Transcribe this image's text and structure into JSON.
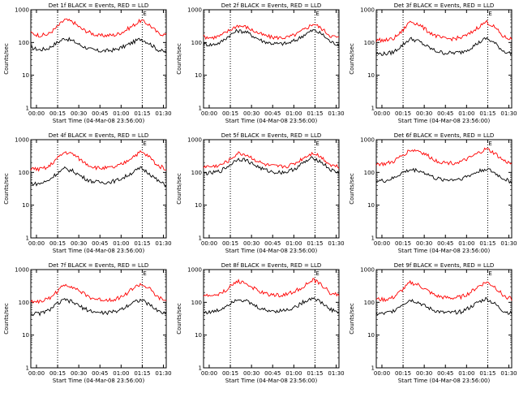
{
  "page": {
    "panel_titles": [
      "Det 1f BLACK = Events, RED = LLD",
      "Det 2f BLACK = Events, RED = LLD",
      "Det 3f BLACK = Events, RED = LLD",
      "Det 4f BLACK = Events, RED = LLD",
      "Det 5f BLACK = Events, RED = LLD",
      "Det 6f BLACK = Events, RED = LLD",
      "Det 7f BLACK = Events, RED = LLD",
      "Det 8f BLACK = Events, RED = LLD",
      "Det 9f BLACK = Events, RED = LLD"
    ],
    "xlabel": "Start Time (04-Mar-08 23:56:00)",
    "ylabel": "Counts/sec",
    "marker_label": "E",
    "colors": {
      "events": "#000000",
      "lld": "#ff0000",
      "marker": "#000000"
    }
  },
  "chart_data": {
    "type": "line",
    "layout": "3x3 grid of identical panels",
    "x_unit": "minutes after 23:56:00",
    "xlim": [
      0,
      96
    ],
    "x_ticks": [
      4,
      19,
      34,
      49,
      64,
      79,
      94
    ],
    "x_tick_labels": [
      "00:00",
      "00:15",
      "00:30",
      "00:45",
      "01:00",
      "01:15",
      "01:30"
    ],
    "y_scale": "log",
    "ylim": [
      1,
      1000
    ],
    "y_ticks": [
      1,
      10,
      100,
      1000
    ],
    "y_tick_labels": [
      "1",
      "10",
      "100",
      "1000"
    ],
    "markers": [
      {
        "x": 19,
        "style": "dotted"
      },
      {
        "x": 79,
        "style": "dotted",
        "label": "E"
      }
    ],
    "x": [
      0,
      6,
      12,
      18,
      24,
      30,
      36,
      42,
      48,
      54,
      60,
      66,
      72,
      78,
      84,
      90,
      96
    ],
    "panels": [
      {
        "title": "Det 1f BLACK = Events, RED = LLD",
        "series": [
          {
            "name": "BLACK = Events",
            "color": "#000000",
            "values": [
              70,
              60,
              65,
              95,
              135,
              110,
              80,
              62,
              55,
              56,
              60,
              75,
              100,
              130,
              95,
              60,
              50
            ]
          },
          {
            "name": "RED = LLD",
            "color": "#ff0000",
            "values": [
              195,
              165,
              175,
              280,
              500,
              420,
              260,
              200,
              160,
              165,
              170,
              220,
              320,
              470,
              350,
              195,
              170
            ]
          }
        ]
      },
      {
        "title": "Det 2f BLACK = Events, RED = LLD",
        "series": [
          {
            "name": "BLACK = Events",
            "color": "#000000",
            "values": [
              90,
              85,
              100,
              160,
              230,
              210,
              150,
              110,
              95,
              90,
              95,
              120,
              180,
              240,
              180,
              105,
              85
            ]
          },
          {
            "name": "RED = LLD",
            "color": "#ff0000",
            "values": [
              150,
              140,
              160,
              230,
              330,
              300,
              220,
              170,
              145,
              140,
              145,
              180,
              260,
              380,
              260,
              160,
              140
            ]
          }
        ]
      },
      {
        "title": "Det 3f BLACK = Events, RED = LLD",
        "series": [
          {
            "name": "BLACK = Events",
            "color": "#000000",
            "values": [
              45,
              45,
              50,
              80,
              130,
              110,
              75,
              55,
              48,
              48,
              50,
              65,
              95,
              135,
              95,
              55,
              45
            ]
          },
          {
            "name": "RED = LLD",
            "color": "#ff0000",
            "values": [
              120,
              115,
              130,
              210,
              450,
              360,
              230,
              160,
              130,
              130,
              140,
              180,
              290,
              430,
              290,
              150,
              125
            ]
          }
        ]
      },
      {
        "title": "Det 4f BLACK = Events, RED = LLD",
        "series": [
          {
            "name": "BLACK = Events",
            "color": "#000000",
            "values": [
              45,
              45,
              55,
              90,
              130,
              110,
              75,
              55,
              50,
              50,
              55,
              70,
              100,
              135,
              95,
              55,
              40
            ]
          },
          {
            "name": "RED = LLD",
            "color": "#ff0000",
            "values": [
              130,
              125,
              140,
              250,
              420,
              360,
              230,
              160,
              135,
              135,
              145,
              190,
              300,
              420,
              300,
              160,
              130
            ]
          }
        ]
      },
      {
        "title": "Det 5f BLACK = Events, RED = LLD",
        "series": [
          {
            "name": "BLACK = Events",
            "color": "#000000",
            "values": [
              95,
              95,
              110,
              160,
              260,
              240,
              170,
              125,
              105,
              100,
              105,
              140,
              210,
              280,
              200,
              120,
              95
            ]
          },
          {
            "name": "RED = LLD",
            "color": "#ff0000",
            "values": [
              150,
              150,
              165,
              230,
              380,
              350,
              250,
              180,
              155,
              150,
              155,
              200,
              300,
              400,
              280,
              170,
              150
            ]
          }
        ]
      },
      {
        "title": "Det 6f BLACK = Events, RED = LLD",
        "series": [
          {
            "name": "BLACK = Events",
            "color": "#000000",
            "values": [
              55,
              55,
              65,
              95,
              120,
              115,
              90,
              65,
              60,
              60,
              65,
              80,
              105,
              130,
              95,
              65,
              50
            ]
          },
          {
            "name": "RED = LLD",
            "color": "#ff0000",
            "values": [
              180,
              180,
              210,
              320,
              480,
              460,
              330,
              230,
              200,
              195,
              210,
              270,
              380,
              520,
              380,
              230,
              180
            ]
          }
        ]
      },
      {
        "title": "Det 7f BLACK = Events, RED = LLD",
        "series": [
          {
            "name": "BLACK = Events",
            "color": "#000000",
            "values": [
              45,
              45,
              55,
              85,
              120,
              100,
              70,
              55,
              48,
              48,
              52,
              68,
              100,
              120,
              85,
              55,
              45
            ]
          },
          {
            "name": "RED = LLD",
            "color": "#ff0000",
            "values": [
              110,
              105,
              125,
              200,
              350,
              300,
              200,
              140,
              120,
              120,
              125,
              160,
              260,
              360,
              260,
              140,
              110
            ]
          }
        ]
      },
      {
        "title": "Det 8f BLACK = Events, RED = LLD",
        "series": [
          {
            "name": "BLACK = Events",
            "color": "#000000",
            "values": [
              50,
              50,
              60,
              90,
              130,
              110,
              80,
              60,
              55,
              55,
              60,
              75,
              110,
              140,
              95,
              60,
              50
            ]
          },
          {
            "name": "RED = LLD",
            "color": "#ff0000",
            "values": [
              160,
              160,
              180,
              280,
              450,
              380,
              260,
              190,
              170,
              165,
              180,
              230,
              330,
              480,
              330,
              190,
              165
            ]
          }
        ]
      },
      {
        "title": "Det 9f BLACK = Events, RED = LLD",
        "series": [
          {
            "name": "BLACK = Events",
            "color": "#000000",
            "values": [
              45,
              45,
              55,
              85,
              120,
              100,
              70,
              55,
              48,
              48,
              52,
              68,
              100,
              130,
              90,
              55,
              45
            ]
          },
          {
            "name": "RED = LLD",
            "color": "#ff0000",
            "values": [
              125,
              120,
              140,
              230,
              400,
              340,
              230,
              160,
              140,
              135,
              145,
              190,
              300,
              420,
              300,
              160,
              125
            ]
          }
        ]
      }
    ],
    "grid": false,
    "legend": "none (colors explained in titles)"
  }
}
